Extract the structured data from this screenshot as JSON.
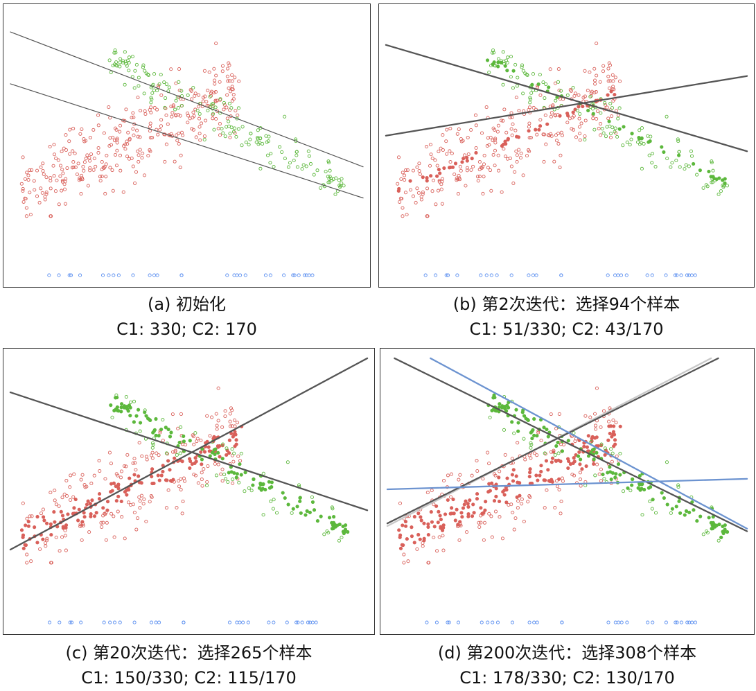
{
  "colors": {
    "class1": "#d9605a",
    "class2": "#5cb83c",
    "unlabeled": "#5b8ff0",
    "fit_line": "#555555",
    "fit_line_gray": "#c8c8c8",
    "fit_line_blue": "#6c93d0"
  },
  "chart_data": [
    {
      "type": "scatter",
      "title": "(a) 初始化",
      "subtitle": "C1: 330; C2: 170",
      "lines": [
        {
          "color": "fit_line",
          "points": [
            [
              0,
              0.93
            ],
            [
              1,
              0.41
            ]
          ]
        },
        {
          "color": "fit_line",
          "points": [
            [
              0,
              0.73
            ],
            [
              1,
              0.29
            ]
          ]
        }
      ],
      "selected": {
        "c1": 0,
        "c2": 0
      },
      "grid": false,
      "legend": "none"
    },
    {
      "type": "scatter",
      "title": "(b) 第2次迭代：选择94个样本",
      "subtitle": "C1: 51/330; C2: 43/170",
      "lines": [
        {
          "color": "fit_line",
          "points": [
            [
              0,
              0.88
            ],
            [
              1,
              0.47
            ]
          ]
        },
        {
          "color": "fit_line",
          "points": [
            [
              0,
              0.53
            ],
            [
              1,
              0.76
            ]
          ]
        }
      ],
      "selected": {
        "c1": 51,
        "c2": 43
      },
      "grid": false,
      "legend": "none"
    },
    {
      "type": "scatter",
      "title": "(c) 第20次迭代：选择265个样本",
      "subtitle": "C1: 150/330; C2: 115/170",
      "lines": [
        {
          "color": "fit_line",
          "points": [
            [
              0,
              0.87
            ],
            [
              1,
              0.42
            ]
          ]
        },
        {
          "color": "fit_line",
          "points": [
            [
              0,
              0.27
            ],
            [
              1,
              1.0
            ]
          ]
        }
      ],
      "selected": {
        "c1": 150,
        "c2": 115
      },
      "grid": false,
      "legend": "none"
    },
    {
      "type": "scatter",
      "title": "(d) 第200次迭代：选择308个样本",
      "subtitle": "C1: 178/330; C2: 130/170",
      "lines": [
        {
          "color": "fit_line_gray",
          "points": [
            [
              0,
              0.36
            ],
            [
              0.9,
              1.0
            ]
          ]
        },
        {
          "color": "fit_line",
          "points": [
            [
              0,
              0.37
            ],
            [
              0.92,
              1.0
            ]
          ]
        },
        {
          "color": "fit_line",
          "points": [
            [
              0.02,
              1.0
            ],
            [
              1,
              0.34
            ]
          ]
        },
        {
          "color": "fit_line_blue",
          "points": [
            [
              0.12,
              1.0
            ],
            [
              1,
              0.35
            ]
          ]
        },
        {
          "color": "fit_line_blue",
          "points": [
            [
              0,
              0.5
            ],
            [
              1,
              0.54
            ]
          ]
        }
      ],
      "selected": {
        "c1": 178,
        "c2": 130
      },
      "grid": false,
      "legend": "none"
    }
  ]
}
